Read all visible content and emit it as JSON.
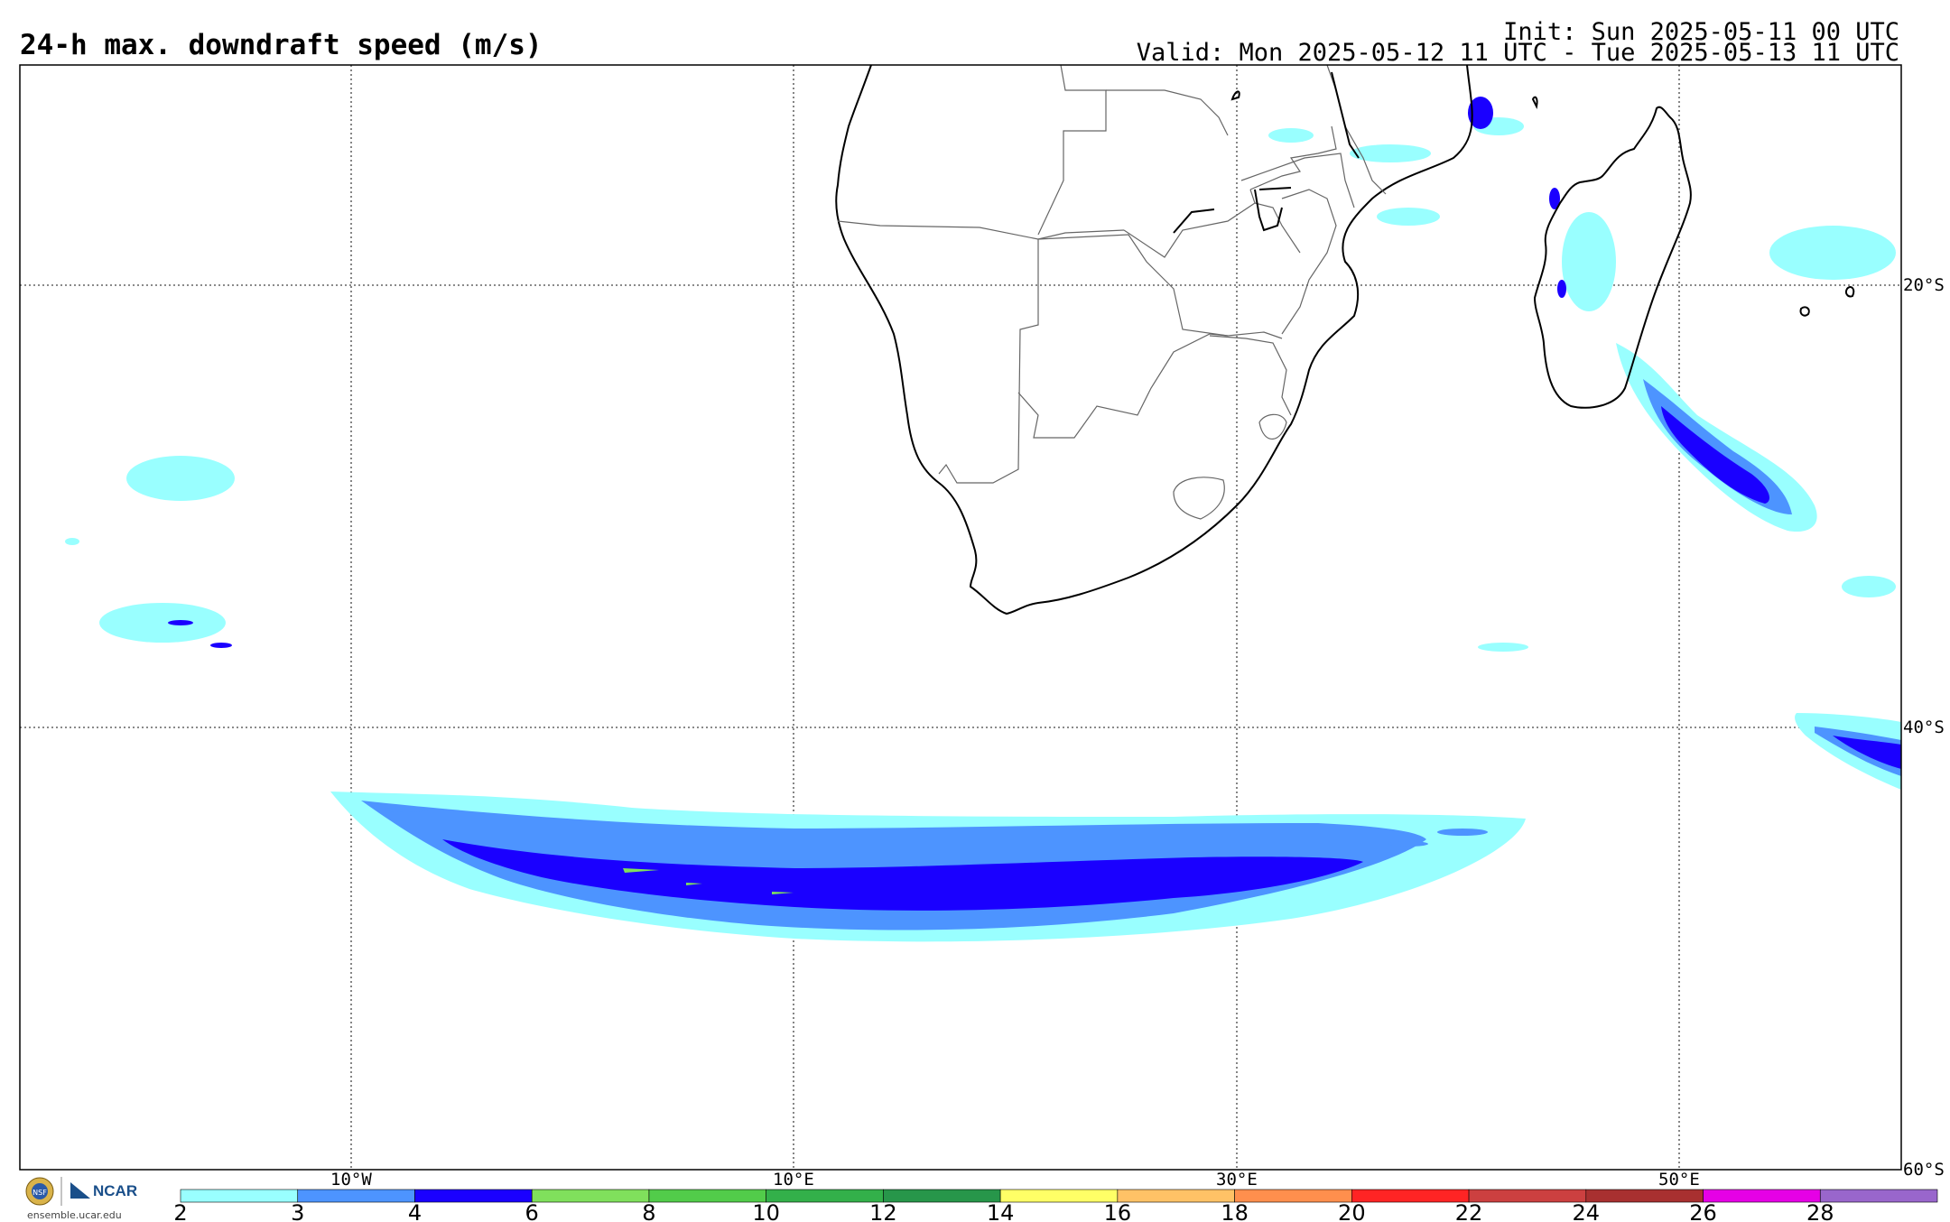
{
  "header": {
    "title": "24-h max. downdraft speed (m/s)",
    "init": "Init: Sun 2025-05-11 00 UTC",
    "valid": "Valid: Mon 2025-05-12 11 UTC - Tue 2025-05-13 11 UTC"
  },
  "map": {
    "region": "Southern Africa / South Atlantic / SW Indian Ocean",
    "lon_labels": [
      "10°W",
      "10°E",
      "30°E",
      "50°E"
    ],
    "lat_labels": [
      "20°S",
      "40°S",
      "60°S"
    ],
    "gridlines": true
  },
  "colorbar": {
    "ticks": [
      "2",
      "3",
      "4",
      "6",
      "8",
      "10",
      "12",
      "14",
      "16",
      "18",
      "20",
      "22",
      "24",
      "26",
      "28"
    ],
    "colors": [
      "#99ffff",
      "#4d94ff",
      "#1a00ff",
      "#80e05c",
      "#52cc4a",
      "#33b04a",
      "#27964a",
      "#ffff66",
      "#ffc266",
      "#ff8f4d",
      "#ff2424",
      "#cc4040",
      "#a83030",
      "#e600e6",
      "#9966cc"
    ]
  },
  "logo": {
    "org_text": "NCAR",
    "seal_text": "NSF",
    "url": "ensemble.ucar.edu"
  }
}
